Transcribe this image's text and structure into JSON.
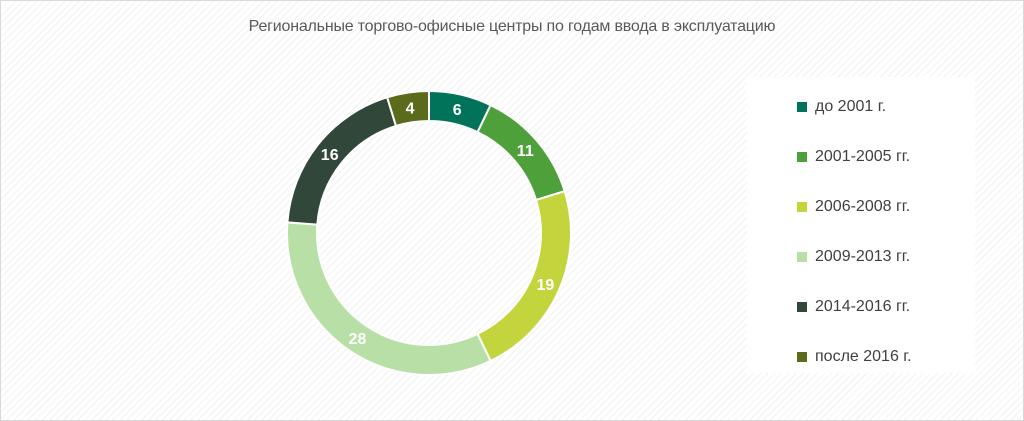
{
  "chart_data": {
    "type": "donut",
    "title": "Региональные торгово-офисные центры по годам ввода в эксплуатацию",
    "categories": [
      "до 2001 г.",
      "2001-2005 гг.",
      "2006-2008 гг.",
      "2009-2013 гг.",
      "2014-2016 гг.",
      "после 2016 г."
    ],
    "values": [
      6,
      11,
      19,
      28,
      16,
      4
    ],
    "colors": [
      "#00735a",
      "#4ea13a",
      "#c3d43d",
      "#b8e0a6",
      "#31473a",
      "#5b6b1c"
    ],
    "legend_position": "right",
    "data_labels": true
  }
}
